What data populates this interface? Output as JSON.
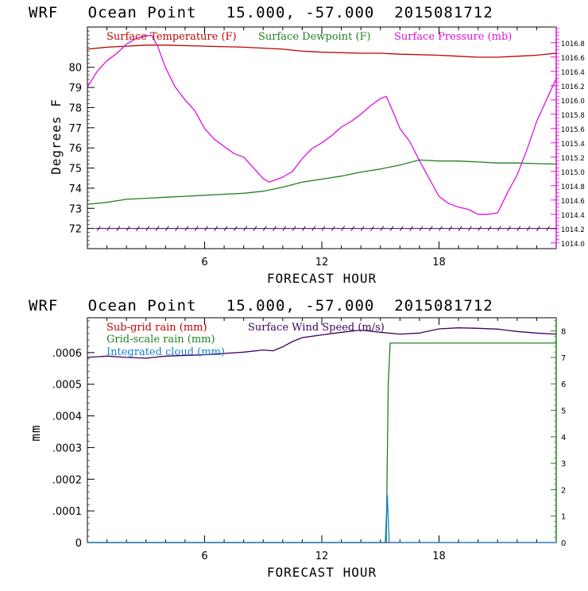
{
  "chart_data": [
    {
      "type": "line",
      "title": "WRF   Ocean Point   15.000, -57.000  2015081712",
      "xlabel": "FORECAST HOUR",
      "ylabel": "Degrees F",
      "xlim": [
        0,
        24
      ],
      "xticks": [
        "6",
        "12",
        "18"
      ],
      "ylim": [
        71,
        82
      ],
      "yticks": [
        "72",
        "73",
        "74",
        "75",
        "76",
        "77",
        "78",
        "79",
        "80"
      ],
      "y2lim": [
        1013.92,
        1017.02
      ],
      "y2ticks": [
        "1014.0",
        "1014.2",
        "1014.4",
        "1014.6",
        "1014.8",
        "1015.0",
        "1015.2",
        "1015.4",
        "1015.6",
        "1015.8",
        "1016.0",
        "1016.2",
        "1016.4",
        "1016.6",
        "1016.8"
      ],
      "legend_placement": "top",
      "wind_barbs_at": 72,
      "series": [
        {
          "name": "Surface Temperature (F)",
          "color": "#c00000",
          "axis": "left",
          "points": [
            [
              0,
              80.9
            ],
            [
              1,
              81.0
            ],
            [
              2,
              81.05
            ],
            [
              3,
              81.1
            ],
            [
              4,
              81.1
            ],
            [
              6,
              81.05
            ],
            [
              8,
              81.0
            ],
            [
              10,
              80.9
            ],
            [
              11,
              80.8
            ],
            [
              12,
              80.75
            ],
            [
              14,
              80.7
            ],
            [
              15,
              80.7
            ],
            [
              16,
              80.65
            ],
            [
              18,
              80.6
            ],
            [
              19,
              80.55
            ],
            [
              20,
              80.5
            ],
            [
              21,
              80.5
            ],
            [
              22,
              80.55
            ],
            [
              23,
              80.6
            ],
            [
              24,
              80.7
            ]
          ]
        },
        {
          "name": "Surface Dewpoint (F)",
          "color": "#208020",
          "axis": "left",
          "points": [
            [
              0,
              73.2
            ],
            [
              1,
              73.3
            ],
            [
              2,
              73.45
            ],
            [
              3,
              73.5
            ],
            [
              4,
              73.55
            ],
            [
              5,
              73.6
            ],
            [
              6,
              73.65
            ],
            [
              7,
              73.7
            ],
            [
              8,
              73.75
            ],
            [
              9,
              73.85
            ],
            [
              10,
              74.05
            ],
            [
              11,
              74.3
            ],
            [
              12,
              74.45
            ],
            [
              13,
              74.6
            ],
            [
              14,
              74.8
            ],
            [
              15,
              74.95
            ],
            [
              16,
              75.15
            ],
            [
              17,
              75.4
            ],
            [
              18,
              75.35
            ],
            [
              19,
              75.35
            ],
            [
              20,
              75.3
            ],
            [
              21,
              75.25
            ],
            [
              22,
              75.25
            ],
            [
              23,
              75.22
            ],
            [
              24,
              75.2
            ]
          ]
        },
        {
          "name": "Surface Pressure (mb)",
          "color": "#e010e0",
          "axis": "right",
          "points": [
            [
              0,
              1016.18
            ],
            [
              0.5,
              1016.4
            ],
            [
              1,
              1016.55
            ],
            [
              1.5,
              1016.65
            ],
            [
              2,
              1016.78
            ],
            [
              2.5,
              1016.86
            ],
            [
              3,
              1016.9
            ],
            [
              3.3,
              1016.9
            ],
            [
              3.6,
              1016.75
            ],
            [
              4,
              1016.45
            ],
            [
              4.5,
              1016.18
            ],
            [
              5,
              1016.0
            ],
            [
              5.5,
              1015.85
            ],
            [
              6,
              1015.6
            ],
            [
              6.5,
              1015.45
            ],
            [
              7,
              1015.35
            ],
            [
              7.5,
              1015.25
            ],
            [
              8,
              1015.2
            ],
            [
              8.5,
              1015.05
            ],
            [
              9,
              1014.9
            ],
            [
              9.3,
              1014.85
            ],
            [
              9.6,
              1014.88
            ],
            [
              10,
              1014.92
            ],
            [
              10.5,
              1015.0
            ],
            [
              11,
              1015.18
            ],
            [
              11.5,
              1015.32
            ],
            [
              12,
              1015.4
            ],
            [
              12.5,
              1015.5
            ],
            [
              13,
              1015.62
            ],
            [
              13.5,
              1015.7
            ],
            [
              14,
              1015.8
            ],
            [
              14.5,
              1015.92
            ],
            [
              15,
              1016.02
            ],
            [
              15.3,
              1016.05
            ],
            [
              15.7,
              1015.8
            ],
            [
              16,
              1015.6
            ],
            [
              16.5,
              1015.42
            ],
            [
              17,
              1015.15
            ],
            [
              17.5,
              1014.9
            ],
            [
              18,
              1014.65
            ],
            [
              18.5,
              1014.55
            ],
            [
              19,
              1014.5
            ],
            [
              19.5,
              1014.47
            ],
            [
              20,
              1014.4
            ],
            [
              20.5,
              1014.4
            ],
            [
              21,
              1014.42
            ],
            [
              21.5,
              1014.7
            ],
            [
              22,
              1014.95
            ],
            [
              22.5,
              1015.3
            ],
            [
              23,
              1015.7
            ],
            [
              23.5,
              1016.0
            ],
            [
              24,
              1016.3
            ]
          ]
        }
      ]
    },
    {
      "type": "line",
      "title": "WRF   Ocean Point   15.000, -57.000  2015081712",
      "xlabel": "FORECAST HOUR",
      "ylabel": "mm",
      "xlim": [
        0,
        24
      ],
      "xticks": [
        "6",
        "12",
        "18"
      ],
      "ylim": [
        0,
        0.00071
      ],
      "yticks": [
        "0",
        ".0001",
        ".0002",
        ".0003",
        ".0004",
        ".0005",
        ".0006"
      ],
      "y2lim": [
        0,
        8.5
      ],
      "y2ticks": [
        "0",
        "1",
        "2",
        "3",
        "4",
        "5",
        "6",
        "7",
        "8"
      ],
      "legend_placement": "top-left",
      "series": [
        {
          "name": "Sub-grid rain (mm)",
          "color": "#c00000",
          "axis": "left",
          "points": [
            [
              0,
              0
            ],
            [
              24,
              0
            ]
          ]
        },
        {
          "name": "Grid-scale rain (mm)",
          "color": "#208020",
          "axis": "left",
          "points": [
            [
              0,
              0
            ],
            [
              15.3,
              0
            ],
            [
              15.4,
              0.0005
            ],
            [
              15.5,
              0.00063
            ],
            [
              24,
              0.00063
            ]
          ]
        },
        {
          "name": "Integrated cloud (mm)",
          "color": "#1080d0",
          "axis": "left",
          "points": [
            [
              0,
              0
            ],
            [
              15.25,
              0
            ],
            [
              15.35,
              0.00015
            ],
            [
              15.45,
              0
            ],
            [
              24,
              0
            ]
          ]
        },
        {
          "name": "Surface Wind Speed (m/s)",
          "color": "#400060",
          "axis": "right",
          "points": [
            [
              0,
              7.0
            ],
            [
              1,
              7.05
            ],
            [
              2,
              7.0
            ],
            [
              3,
              6.97
            ],
            [
              4,
              7.05
            ],
            [
              6,
              7.1
            ],
            [
              8,
              7.2
            ],
            [
              9,
              7.28
            ],
            [
              9.5,
              7.25
            ],
            [
              10,
              7.4
            ],
            [
              10.5,
              7.6
            ],
            [
              11,
              7.75
            ],
            [
              12,
              7.85
            ],
            [
              13,
              7.95
            ],
            [
              14,
              8.03
            ],
            [
              15,
              7.95
            ],
            [
              16,
              7.88
            ],
            [
              17,
              7.92
            ],
            [
              18,
              8.08
            ],
            [
              19,
              8.12
            ],
            [
              20,
              8.1
            ],
            [
              21,
              8.07
            ],
            [
              22,
              7.98
            ],
            [
              23,
              7.92
            ],
            [
              24,
              7.88
            ]
          ]
        }
      ]
    }
  ]
}
